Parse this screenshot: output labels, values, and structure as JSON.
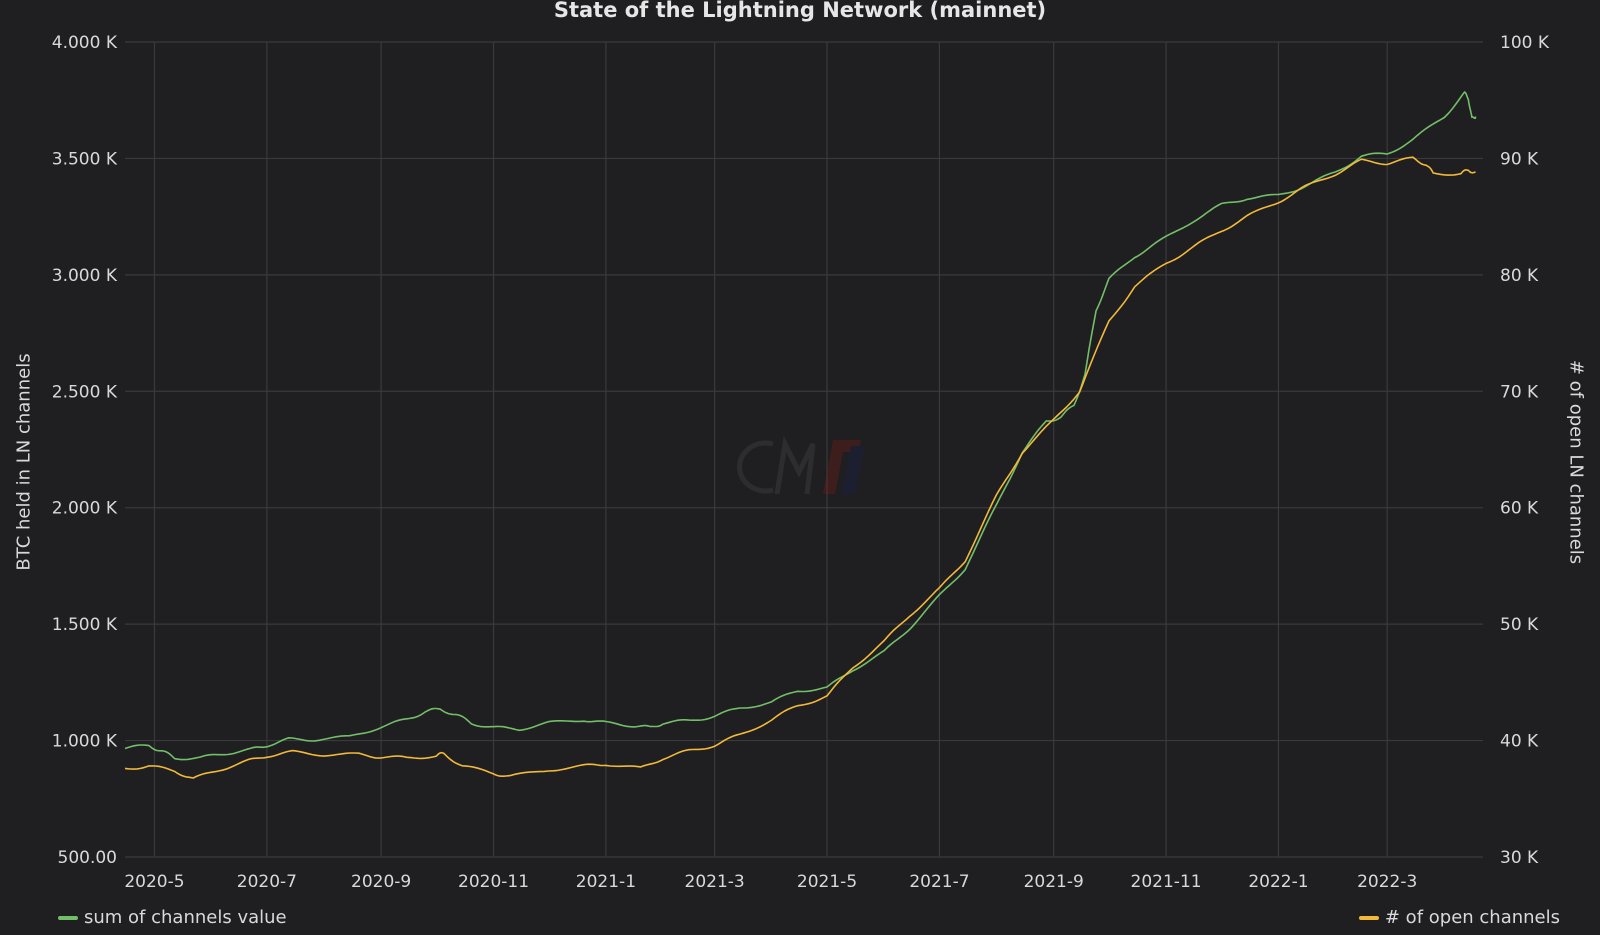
{
  "chart_data": {
    "type": "line",
    "title": "State of the Lightning Network (mainnet)",
    "ylabel_left": "BTC held in LN channels",
    "ylabel_right": "# of open LN channels",
    "x_ticks": [
      "2020-5",
      "2020-7",
      "2020-9",
      "2020-11",
      "2021-1",
      "2021-3",
      "2021-5",
      "2021-7",
      "2021-9",
      "2021-11",
      "2022-1",
      "2022-3"
    ],
    "xlim": [
      "2020-04-15",
      "2022-04-22"
    ],
    "y_left": {
      "ylim": [
        500,
        4000
      ],
      "ticks": [
        500,
        1000,
        1500,
        2000,
        2500,
        3000,
        3500,
        4000
      ],
      "tick_labels": [
        "500.00",
        "1.000 K",
        "1.500 K",
        "2.000 K",
        "2.500 K",
        "3.000 K",
        "3.500 K",
        "4.000 K"
      ]
    },
    "y_right": {
      "ylim": [
        30000,
        100000
      ],
      "ticks": [
        30000,
        40000,
        50000,
        60000,
        70000,
        80000,
        90000,
        100000
      ],
      "tick_labels": [
        "30 K",
        "40 K",
        "50 K",
        "60 K",
        "70 K",
        "80 K",
        "90 K",
        "100 K"
      ]
    },
    "grid": true,
    "legend": "bottom",
    "series": [
      {
        "name": "sum of channels value",
        "axis": "left",
        "color": "#73bf69",
        "points": [
          [
            "2020-04-15",
            968
          ],
          [
            "2020-04-28",
            978
          ],
          [
            "2020-05-05",
            955
          ],
          [
            "2020-05-12",
            925
          ],
          [
            "2020-05-26",
            925
          ],
          [
            "2020-06-08",
            945
          ],
          [
            "2020-06-22",
            960
          ],
          [
            "2020-07-01",
            980
          ],
          [
            "2020-07-13",
            1005
          ],
          [
            "2020-07-27",
            1005
          ],
          [
            "2020-08-15",
            1015
          ],
          [
            "2020-09-01",
            1060
          ],
          [
            "2020-09-15",
            1090
          ],
          [
            "2020-09-25",
            1125
          ],
          [
            "2020-10-03",
            1135
          ],
          [
            "2020-10-12",
            1110
          ],
          [
            "2020-10-20",
            1075
          ],
          [
            "2020-11-01",
            1055
          ],
          [
            "2020-11-15",
            1050
          ],
          [
            "2020-12-01",
            1075
          ],
          [
            "2020-12-20",
            1090
          ],
          [
            "2021-01-01",
            1075
          ],
          [
            "2021-01-16",
            1065
          ],
          [
            "2021-01-25",
            1055
          ],
          [
            "2021-02-01",
            1075
          ],
          [
            "2021-02-15",
            1085
          ],
          [
            "2021-03-01",
            1105
          ],
          [
            "2021-03-15",
            1140
          ],
          [
            "2021-04-01",
            1165
          ],
          [
            "2021-04-15",
            1215
          ],
          [
            "2021-05-01",
            1225
          ],
          [
            "2021-05-15",
            1305
          ],
          [
            "2021-06-01",
            1380
          ],
          [
            "2021-06-15",
            1485
          ],
          [
            "2021-07-01",
            1620
          ],
          [
            "2021-07-15",
            1740
          ],
          [
            "2021-08-01",
            2010
          ],
          [
            "2021-08-15",
            2240
          ],
          [
            "2021-08-28",
            2370
          ],
          [
            "2021-09-05",
            2390
          ],
          [
            "2021-09-12",
            2440
          ],
          [
            "2021-09-18",
            2570
          ],
          [
            "2021-09-24",
            2850
          ],
          [
            "2021-10-01",
            2980
          ],
          [
            "2021-10-15",
            3080
          ],
          [
            "2021-10-28",
            3140
          ],
          [
            "2021-11-15",
            3230
          ],
          [
            "2021-12-01",
            3300
          ],
          [
            "2021-12-15",
            3330
          ],
          [
            "2022-01-01",
            3340
          ],
          [
            "2022-01-15",
            3380
          ],
          [
            "2022-02-01",
            3440
          ],
          [
            "2022-02-15",
            3510
          ],
          [
            "2022-03-01",
            3520
          ],
          [
            "2022-03-15",
            3580
          ],
          [
            "2022-04-01",
            3680
          ],
          [
            "2022-04-12",
            3780
          ],
          [
            "2022-04-14",
            3760
          ],
          [
            "2022-04-16",
            3670
          ],
          [
            "2022-04-18",
            3680
          ]
        ]
      },
      {
        "name": "# of open channels",
        "axis": "right",
        "color": "#f2b93a",
        "points": [
          [
            "2020-04-15",
            37600
          ],
          [
            "2020-04-28",
            37800
          ],
          [
            "2020-05-12",
            37400
          ],
          [
            "2020-05-22",
            36700
          ],
          [
            "2020-06-05",
            37500
          ],
          [
            "2020-06-20",
            38200
          ],
          [
            "2020-07-01",
            38700
          ],
          [
            "2020-07-15",
            39000
          ],
          [
            "2020-08-01",
            38800
          ],
          [
            "2020-08-20",
            38800
          ],
          [
            "2020-09-01",
            38600
          ],
          [
            "2020-09-15",
            38500
          ],
          [
            "2020-10-01",
            38700
          ],
          [
            "2020-10-05",
            38900
          ],
          [
            "2020-10-15",
            37800
          ],
          [
            "2020-11-01",
            37200
          ],
          [
            "2020-11-10",
            36900
          ],
          [
            "2020-12-01",
            37500
          ],
          [
            "2020-12-20",
            37800
          ],
          [
            "2021-01-01",
            38000
          ],
          [
            "2021-01-20",
            37600
          ],
          [
            "2021-02-01",
            38500
          ],
          [
            "2021-02-15",
            39100
          ],
          [
            "2021-03-01",
            39600
          ],
          [
            "2021-03-15",
            40500
          ],
          [
            "2021-04-01",
            41800
          ],
          [
            "2021-04-15",
            43000
          ],
          [
            "2021-05-01",
            43800
          ],
          [
            "2021-05-15",
            46300
          ],
          [
            "2021-06-01",
            48500
          ],
          [
            "2021-06-15",
            50800
          ],
          [
            "2021-07-01",
            53000
          ],
          [
            "2021-07-15",
            55500
          ],
          [
            "2021-08-01",
            61000
          ],
          [
            "2021-08-15",
            64800
          ],
          [
            "2021-09-01",
            67500
          ],
          [
            "2021-09-15",
            70000
          ],
          [
            "2021-10-01",
            76000
          ],
          [
            "2021-10-15",
            79000
          ],
          [
            "2021-11-01",
            81000
          ],
          [
            "2021-11-15",
            82300
          ],
          [
            "2021-12-01",
            83800
          ],
          [
            "2021-12-15",
            85000
          ],
          [
            "2022-01-01",
            86300
          ],
          [
            "2022-01-15",
            87500
          ],
          [
            "2022-02-01",
            88700
          ],
          [
            "2022-02-15",
            89800
          ],
          [
            "2022-03-01",
            89600
          ],
          [
            "2022-03-15",
            90000
          ],
          [
            "2022-03-22",
            89500
          ],
          [
            "2022-03-26",
            88700
          ],
          [
            "2022-04-10",
            88700
          ],
          [
            "2022-04-14",
            89000
          ],
          [
            "2022-04-18",
            88800
          ]
        ]
      }
    ]
  },
  "watermark": {
    "text": "CM",
    "accent_colors": [
      "#c0392b",
      "#1f3a93"
    ]
  }
}
